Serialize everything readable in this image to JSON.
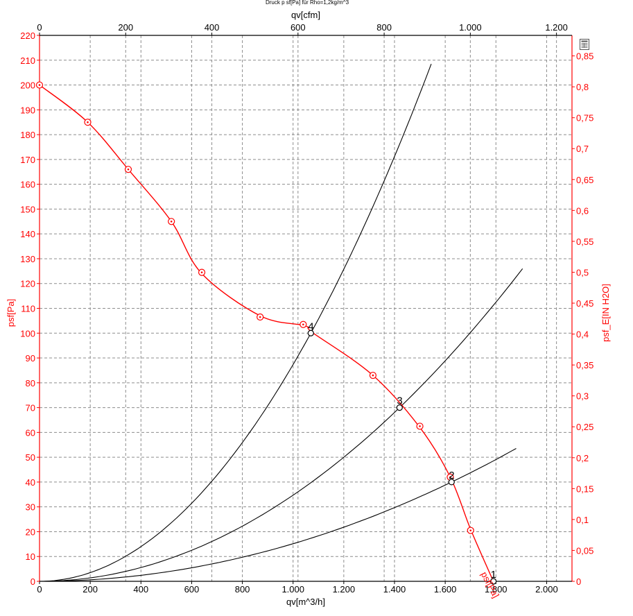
{
  "chart_data": {
    "type": "line",
    "title": "Druck p sf[Pa] für Rho=1,2kg/m^3",
    "xlabel": "qv[m^3/h]",
    "x2label": "qv[cfm]",
    "ylabel": "psf[Pa]",
    "y2label": "psf_E[IN H2O]",
    "xlim": [
      0,
      2100
    ],
    "ylim": [
      0,
      220
    ],
    "x2lim": [
      0,
      1236
    ],
    "y2lim": [
      0,
      0.8832
    ],
    "grid": true,
    "x_ticks": [
      0,
      200,
      400,
      600,
      800,
      1000,
      1200,
      1400,
      1600,
      1800,
      2000
    ],
    "x_tick_labels": [
      "0",
      "200",
      "400",
      "600",
      "800",
      "1.000",
      "1.200",
      "1.400",
      "1.600",
      "1.800",
      "2.000"
    ],
    "y_ticks": [
      0,
      10,
      20,
      30,
      40,
      50,
      60,
      70,
      80,
      90,
      100,
      110,
      120,
      130,
      140,
      150,
      160,
      170,
      180,
      190,
      200,
      210,
      220
    ],
    "y_tick_labels": [
      "0",
      "10",
      "20",
      "30",
      "40",
      "50",
      "60",
      "70",
      "80",
      "90",
      "100",
      "110",
      "120",
      "130",
      "140",
      "150",
      "160",
      "170",
      "180",
      "190",
      "200",
      "210",
      "220"
    ],
    "x2_ticks": [
      0,
      200,
      400,
      600,
      800,
      1000,
      1200
    ],
    "x2_tick_labels": [
      "0",
      "200",
      "400",
      "600",
      "800",
      "1.000",
      "1.200"
    ],
    "y2_ticks": [
      0,
      0.05,
      0.1,
      0.15,
      0.2,
      0.25,
      0.3,
      0.35,
      0.4,
      0.45,
      0.5,
      0.55,
      0.6,
      0.65,
      0.7,
      0.75,
      0.8,
      0.85
    ],
    "y2_tick_labels": [
      "0",
      "0,05",
      "0,1",
      "0,15",
      "0,2",
      "0,25",
      "0,3",
      "0,35",
      "0,4",
      "0,45",
      "0,5",
      "0,55",
      "0,6",
      "0,65",
      "0,7",
      "0,75",
      "0,8",
      "0,85"
    ],
    "fan_curve": {
      "name": "psf[Pa]",
      "color": "#ff0000",
      "points": [
        [
          0,
          200
        ],
        [
          190,
          185
        ],
        [
          350,
          166
        ],
        [
          520,
          145
        ],
        [
          640,
          124
        ],
        [
          870,
          107
        ],
        [
          1045,
          103
        ],
        [
          1080,
          100
        ],
        [
          1315,
          83
        ],
        [
          1500,
          62
        ],
        [
          1620,
          42
        ],
        [
          1700,
          21
        ],
        [
          1790,
          0
        ]
      ],
      "markers": [
        [
          0,
          200
        ],
        [
          190,
          185
        ],
        [
          350,
          166
        ],
        [
          520,
          145
        ],
        [
          640,
          124.5
        ],
        [
          870,
          106.5
        ],
        [
          1040,
          103.5
        ],
        [
          1315,
          83
        ],
        [
          1500,
          62.5
        ],
        [
          1620,
          42
        ],
        [
          1700,
          20.5
        ]
      ]
    },
    "system_curves": [
      {
        "label": "1",
        "k_x": 1790,
        "k_y": 0,
        "x_end": 0
      },
      {
        "label": "2",
        "k_x": 1625,
        "k_y": 40,
        "x_end": 1880
      },
      {
        "label": "3",
        "k_x": 1420,
        "k_y": 70,
        "x_end": 1905
      },
      {
        "label": "4",
        "k_x": 1070,
        "k_y": 100,
        "x_end": 1545
      }
    ],
    "operating_points": [
      {
        "label": "1",
        "x": 1790,
        "y": 0
      },
      {
        "label": "2",
        "x": 1625,
        "y": 40
      },
      {
        "label": "3",
        "x": 1420,
        "y": 70
      },
      {
        "label": "4",
        "x": 1070,
        "y": 100
      }
    ],
    "curve_label": "psf[Pa]",
    "colors": {
      "red": "#ff0000",
      "black": "#000000",
      "grid": "#8c8c8c"
    }
  },
  "toolbar": {
    "icon": "table-view-icon"
  }
}
